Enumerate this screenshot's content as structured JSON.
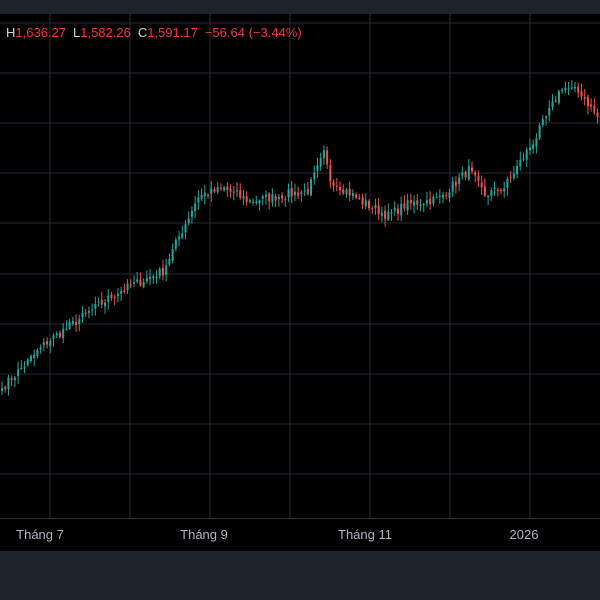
{
  "legend": {
    "high_key": "H",
    "high_value": "1,636.27",
    "low_key": "L",
    "low_value": "1,582.26",
    "close_key": "C",
    "close_value": "1,591.17",
    "change": "−56.64 (−3.44%)"
  },
  "colors": {
    "up": "#26a69a",
    "down": "#ef5350",
    "background": "#000000",
    "grid": "#262a33",
    "frame": "#1e222d"
  },
  "chart_data": {
    "type": "candlestick",
    "x_tick_labels": [
      "Tháng 7",
      "Tháng 9",
      "Tháng 11",
      "2026"
    ],
    "grid": true,
    "price_anchors": [
      {
        "i": 0,
        "v": 1340
      },
      {
        "i": 14,
        "v": 1384
      },
      {
        "i": 36,
        "v": 1432
      },
      {
        "i": 50,
        "v": 1452
      },
      {
        "i": 61,
        "v": 1524
      },
      {
        "i": 69,
        "v": 1531
      },
      {
        "i": 77,
        "v": 1519
      },
      {
        "i": 95,
        "v": 1529
      },
      {
        "i": 100,
        "v": 1564
      },
      {
        "i": 102,
        "v": 1540
      },
      {
        "i": 112,
        "v": 1518
      },
      {
        "i": 120,
        "v": 1505
      },
      {
        "i": 125,
        "v": 1515
      },
      {
        "i": 136,
        "v": 1522
      },
      {
        "i": 145,
        "v": 1549
      },
      {
        "i": 150,
        "v": 1525
      },
      {
        "i": 156,
        "v": 1532
      },
      {
        "i": 166,
        "v": 1581
      },
      {
        "i": 174,
        "v": 1629
      },
      {
        "i": 180,
        "v": 1622
      },
      {
        "i": 187,
        "v": 1590
      }
    ]
  }
}
